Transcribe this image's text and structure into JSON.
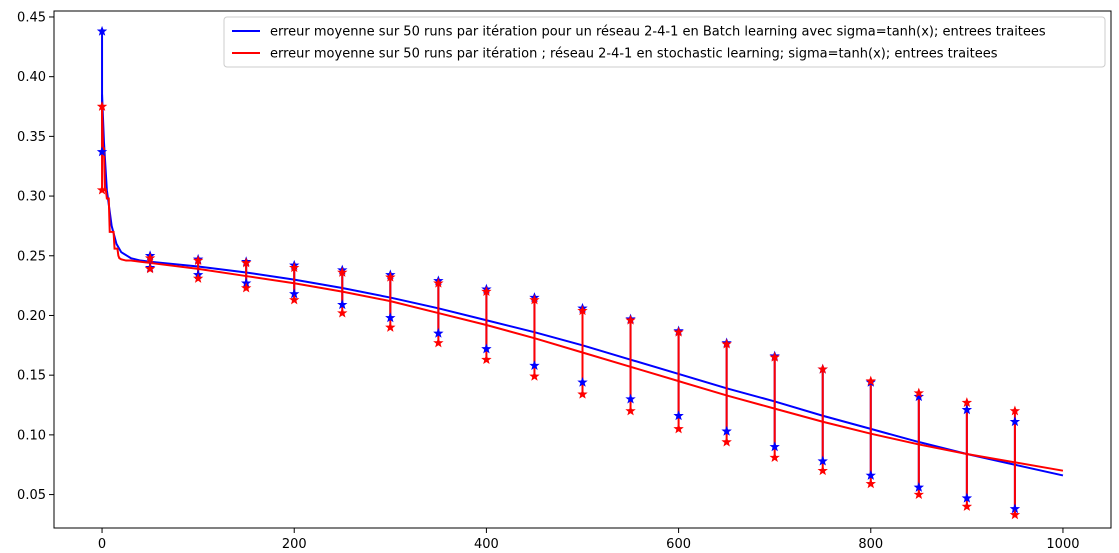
{
  "chart_data": {
    "type": "line",
    "xlim": [
      -50,
      1050
    ],
    "ylim": [
      0.022,
      0.455
    ],
    "x_ticks": [
      0,
      200,
      400,
      600,
      800,
      1000
    ],
    "x_tick_labels": [
      "0",
      "200",
      "400",
      "600",
      "800",
      "1000"
    ],
    "y_ticks": [
      0.05,
      0.1,
      0.15,
      0.2,
      0.25,
      0.3,
      0.35,
      0.4,
      0.45
    ],
    "y_tick_labels": [
      "0.05",
      "0.10",
      "0.15",
      "0.20",
      "0.25",
      "0.30",
      "0.35",
      "0.40",
      "0.45"
    ],
    "grid": false,
    "legend_position": "top-right",
    "series": [
      {
        "name": "erreur moyenne sur 50 runs par itération pour un réseau 2-4-1 en Batch learning avec sigma=tanh(x); entrees traitees",
        "color": "#0000ff",
        "x": [
          0,
          2,
          5,
          10,
          15,
          20,
          30,
          40,
          50,
          100,
          150,
          200,
          250,
          300,
          350,
          400,
          450,
          500,
          550,
          600,
          650,
          700,
          750,
          800,
          850,
          900,
          950,
          1000
        ],
        "y": [
          0.385,
          0.345,
          0.305,
          0.275,
          0.26,
          0.253,
          0.248,
          0.246,
          0.245,
          0.241,
          0.236,
          0.23,
          0.223,
          0.215,
          0.206,
          0.196,
          0.186,
          0.175,
          0.163,
          0.151,
          0.139,
          0.128,
          0.116,
          0.105,
          0.094,
          0.084,
          0.075,
          0.066
        ],
        "error_bars": {
          "x": [
            0,
            50,
            100,
            150,
            200,
            250,
            300,
            350,
            400,
            450,
            500,
            550,
            600,
            650,
            700,
            750,
            800,
            850,
            900,
            950
          ],
          "upper": [
            0.438,
            0.25,
            0.247,
            0.245,
            0.242,
            0.238,
            0.234,
            0.229,
            0.222,
            0.215,
            0.206,
            0.197,
            0.187,
            0.177,
            0.166,
            0.155,
            0.144,
            0.132,
            0.121,
            0.111
          ],
          "lower": [
            0.337,
            0.24,
            0.234,
            0.227,
            0.218,
            0.209,
            0.198,
            0.185,
            0.172,
            0.158,
            0.144,
            0.13,
            0.116,
            0.103,
            0.09,
            0.078,
            0.066,
            0.056,
            0.047,
            0.038
          ]
        }
      },
      {
        "name": "erreur moyenne sur 50 runs par itération ; réseau 2-4-1 en stochastic learning; sigma=tanh(x); entrees traitees",
        "color": "#ff0000",
        "x": [
          0,
          1,
          2,
          3,
          4,
          5,
          6,
          7,
          8,
          9,
          10,
          11,
          12,
          13,
          14,
          15,
          16,
          17,
          18,
          20,
          25,
          30,
          40,
          50,
          100,
          150,
          200,
          250,
          300,
          350,
          400,
          450,
          500,
          550,
          600,
          650,
          700,
          750,
          800,
          850,
          900,
          950,
          1000
        ],
        "y": [
          0.375,
          0.34,
          0.34,
          0.305,
          0.305,
          0.298,
          0.298,
          0.298,
          0.27,
          0.27,
          0.27,
          0.27,
          0.27,
          0.256,
          0.256,
          0.256,
          0.256,
          0.25,
          0.248,
          0.247,
          0.246,
          0.246,
          0.245,
          0.244,
          0.239,
          0.233,
          0.227,
          0.22,
          0.212,
          0.202,
          0.192,
          0.181,
          0.169,
          0.157,
          0.145,
          0.133,
          0.122,
          0.111,
          0.101,
          0.092,
          0.084,
          0.077,
          0.07
        ],
        "error_bars": {
          "x": [
            0,
            50,
            100,
            150,
            200,
            250,
            300,
            350,
            400,
            450,
            500,
            550,
            600,
            650,
            700,
            750,
            800,
            850,
            900,
            950
          ],
          "upper": [
            0.375,
            0.248,
            0.246,
            0.244,
            0.24,
            0.236,
            0.232,
            0.227,
            0.22,
            0.213,
            0.204,
            0.196,
            0.186,
            0.176,
            0.165,
            0.155,
            0.145,
            0.135,
            0.127,
            0.12
          ],
          "lower": [
            0.305,
            0.239,
            0.231,
            0.223,
            0.213,
            0.202,
            0.19,
            0.177,
            0.163,
            0.149,
            0.134,
            0.12,
            0.105,
            0.094,
            0.081,
            0.07,
            0.059,
            0.05,
            0.04,
            0.033
          ]
        }
      }
    ]
  }
}
